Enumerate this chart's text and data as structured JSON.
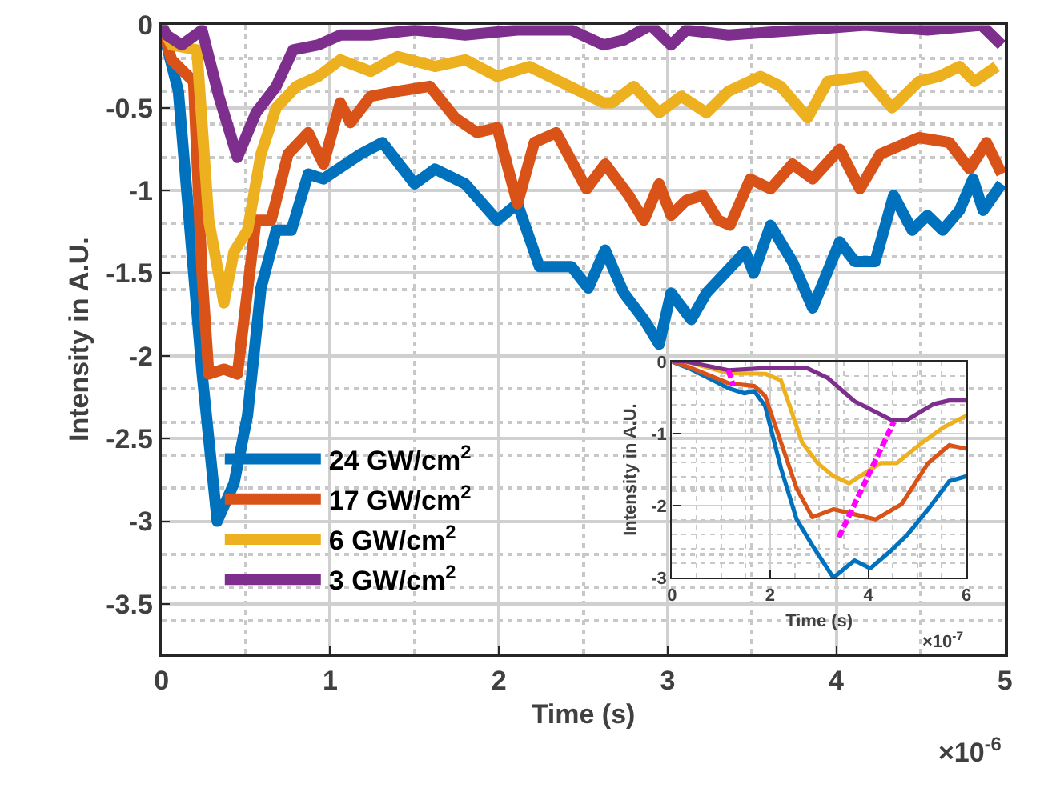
{
  "chart_data": [
    {
      "type": "line",
      "xlabel": "Time (s)",
      "ylabel": "Intensity in A.U.",
      "xlim": [
        0,
        5
      ],
      "ylim": [
        -3.8,
        0
      ],
      "xticks": [
        0,
        1,
        2,
        3,
        4,
        5
      ],
      "yticks": [
        0,
        -0.5,
        -1,
        -1.5,
        -2,
        -2.5,
        -3,
        -3.5
      ],
      "grid": true,
      "legend": "bottom left",
      "line_style": "solid",
      "annotations": [
        "×10$^{-6}$"
      ],
      "series": [
        {
          "name": "24 GW/cm$^{2}$",
          "color": "#0072bd",
          "x": [
            0,
            0.1,
            0.24,
            0.33,
            0.43,
            0.51,
            0.59,
            0.68,
            0.77,
            0.87,
            0.96,
            1.18,
            1.31,
            1.5,
            1.62,
            1.8,
            1.99,
            2.11,
            2.24,
            2.43,
            2.53,
            2.63,
            2.74,
            2.86,
            2.95,
            3.02,
            3.14,
            3.23,
            3.46,
            3.51,
            3.61,
            3.74,
            3.86,
            4.02,
            4.11,
            4.23,
            4.34,
            4.45,
            4.54,
            4.63,
            4.73,
            4.81,
            4.87,
            4.98
          ],
          "values": [
            0,
            -0.4,
            -2.1,
            -3.0,
            -2.77,
            -2.36,
            -1.59,
            -1.24,
            -1.24,
            -0.9,
            -0.93,
            -0.78,
            -0.71,
            -0.96,
            -0.87,
            -0.96,
            -1.18,
            -1.08,
            -1.46,
            -1.46,
            -1.59,
            -1.36,
            -1.62,
            -1.78,
            -1.93,
            -1.62,
            -1.78,
            -1.62,
            -1.37,
            -1.5,
            -1.21,
            -1.43,
            -1.71,
            -1.31,
            -1.43,
            -1.43,
            -1.03,
            -1.24,
            -1.15,
            -1.24,
            -1.12,
            -0.93,
            -1.12,
            -0.96
          ]
        },
        {
          "name": "17 GW/cm$^{2}$",
          "color": "#d95319",
          "x": [
            0,
            0.06,
            0.19,
            0.24,
            0.28,
            0.37,
            0.45,
            0.56,
            0.65,
            0.75,
            0.87,
            0.96,
            1.06,
            1.12,
            1.24,
            1.4,
            1.59,
            1.74,
            1.87,
            1.99,
            2.11,
            2.21,
            2.34,
            2.52,
            2.63,
            2.77,
            2.86,
            2.95,
            3.02,
            3.11,
            3.21,
            3.3,
            3.37,
            3.49,
            3.61,
            3.74,
            3.86,
            4.02,
            4.14,
            4.26,
            4.49,
            4.67,
            4.79,
            4.89,
            4.98
          ],
          "values": [
            0,
            -0.21,
            -0.34,
            -1.5,
            -2.11,
            -2.08,
            -2.11,
            -1.18,
            -1.18,
            -0.78,
            -0.65,
            -0.84,
            -0.47,
            -0.59,
            -0.43,
            -0.4,
            -0.37,
            -0.56,
            -0.65,
            -0.62,
            -1.08,
            -0.71,
            -0.65,
            -0.99,
            -0.84,
            -1.03,
            -1.18,
            -0.96,
            -1.15,
            -1.06,
            -1.03,
            -1.18,
            -1.21,
            -0.93,
            -0.99,
            -0.84,
            -0.93,
            -0.75,
            -0.99,
            -0.78,
            -0.68,
            -0.71,
            -0.87,
            -0.71,
            -0.9
          ]
        },
        {
          "name": "6 GW/cm$^{2}$",
          "color": "#edb120",
          "x": [
            0,
            0.06,
            0.21,
            0.28,
            0.37,
            0.43,
            0.51,
            0.59,
            0.68,
            0.8,
            0.93,
            1.06,
            1.24,
            1.4,
            1.62,
            1.8,
            1.99,
            2.18,
            2.36,
            2.62,
            2.67,
            2.8,
            2.95,
            3.08,
            3.23,
            3.36,
            3.55,
            3.67,
            3.83,
            3.95,
            4.17,
            4.33,
            4.49,
            4.61,
            4.73,
            4.82,
            4.95
          ],
          "values": [
            0,
            -0.12,
            -0.15,
            -1.18,
            -1.68,
            -1.37,
            -1.24,
            -0.78,
            -0.5,
            -0.37,
            -0.31,
            -0.21,
            -0.28,
            -0.19,
            -0.25,
            -0.21,
            -0.31,
            -0.25,
            -0.34,
            -0.47,
            -0.47,
            -0.37,
            -0.53,
            -0.43,
            -0.53,
            -0.4,
            -0.31,
            -0.37,
            -0.56,
            -0.34,
            -0.31,
            -0.5,
            -0.34,
            -0.31,
            -0.25,
            -0.34,
            -0.25
          ]
        },
        {
          "name": "3 GW/cm$^{2}$",
          "color": "#7e2f8e",
          "x": [
            0,
            0.03,
            0.12,
            0.24,
            0.34,
            0.45,
            0.56,
            0.68,
            0.78,
            0.93,
            1.06,
            1.24,
            1.5,
            1.8,
            2.11,
            2.43,
            2.62,
            2.74,
            2.9,
            3.02,
            3.11,
            3.36,
            3.79,
            4.17,
            4.54,
            4.86,
            4.98
          ],
          "values": [
            0,
            -0.06,
            -0.12,
            -0.03,
            -0.43,
            -0.8,
            -0.53,
            -0.37,
            -0.15,
            -0.12,
            -0.06,
            -0.06,
            -0.03,
            -0.06,
            -0.03,
            -0.03,
            -0.12,
            -0.09,
            0,
            -0.12,
            -0.03,
            -0.06,
            -0.03,
            0,
            -0.03,
            0,
            -0.12
          ]
        }
      ]
    },
    {
      "type": "line",
      "xlabel": "Time (s)",
      "ylabel": "Intensity in A.U.",
      "xlim": [
        0,
        6
      ],
      "ylim": [
        -3,
        0
      ],
      "xticks": [
        0,
        2,
        4,
        6
      ],
      "yticks": [
        0,
        -1,
        -2,
        -3
      ],
      "grid": true,
      "line_style": "solid",
      "annotations": [
        "×10$^{-7}$"
      ],
      "series": [
        {
          "color": "#0072bd",
          "x": [
            0,
            0.4,
            1.15,
            1.47,
            1.68,
            1.9,
            2.22,
            2.54,
            2.86,
            3.29,
            3.72,
            4.04,
            4.47,
            4.79,
            5.22,
            5.65,
            6
          ],
          "values": [
            0,
            -0.11,
            -0.37,
            -0.44,
            -0.41,
            -0.62,
            -1.48,
            -2.19,
            -2.55,
            -3.0,
            -2.76,
            -2.87,
            -2.62,
            -2.41,
            -2.05,
            -1.66,
            -1.59
          ]
        },
        {
          "color": "#d95319",
          "x": [
            0,
            0.4,
            1.15,
            1.68,
            1.9,
            2.22,
            2.54,
            2.86,
            3.29,
            3.72,
            4.15,
            4.68,
            5.22,
            5.65,
            6
          ],
          "values": [
            0,
            -0.09,
            -0.3,
            -0.34,
            -0.48,
            -1.12,
            -1.76,
            -2.16,
            -2.05,
            -2.12,
            -2.19,
            -1.98,
            -1.41,
            -1.16,
            -1.21
          ]
        },
        {
          "color": "#edb120",
          "x": [
            0,
            0.29,
            1.15,
            1.9,
            2.22,
            2.65,
            2.97,
            3.29,
            3.61,
            3.93,
            4.25,
            4.58,
            5.11,
            5.54,
            6
          ],
          "values": [
            0,
            0,
            -0.16,
            -0.17,
            -0.26,
            -1.12,
            -1.41,
            -1.59,
            -1.69,
            -1.55,
            -1.41,
            -1.41,
            -1.12,
            -0.91,
            -0.75
          ]
        },
        {
          "color": "#7e2f8e",
          "x": [
            0,
            0.29,
            1.15,
            1.9,
            2.75,
            3.18,
            3.72,
            4.47,
            4.79,
            5.33,
            5.65,
            6
          ],
          "values": [
            0,
            0,
            -0.12,
            -0.09,
            -0.09,
            -0.23,
            -0.55,
            -0.81,
            -0.81,
            -0.59,
            -0.54,
            -0.54
          ]
        },
        {
          "color": "#ff00ff",
          "line_style": "dashed",
          "x": [
            1.15,
            1.25
          ],
          "values": [
            -0.12,
            -0.34
          ]
        },
        {
          "color": "#ff00ff",
          "line_style": "dashed",
          "x": [
            3.4,
            4.52
          ],
          "values": [
            -2.44,
            -0.84
          ]
        }
      ]
    }
  ]
}
